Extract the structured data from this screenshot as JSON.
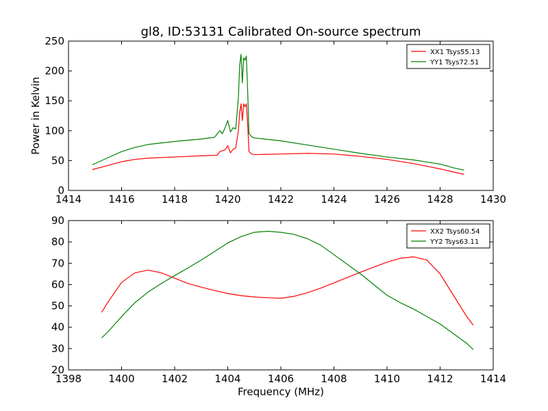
{
  "chart_data": [
    {
      "type": "line",
      "title": "gl8, ID:53131 Calibrated On-source spectrum",
      "xlabel": "",
      "ylabel": "Power in Kelvin",
      "xlim": [
        1414,
        1430
      ],
      "ylim": [
        0,
        250
      ],
      "xticks": [
        "1414",
        "1416",
        "1418",
        "1420",
        "1422",
        "1424",
        "1426",
        "1428",
        "1430"
      ],
      "yticks": [
        "0",
        "50",
        "100",
        "150",
        "200",
        "250"
      ],
      "grid": false,
      "legend": "top-right",
      "series": [
        {
          "name": "XX1 Tsys55.13",
          "color": "#ff0000",
          "x": [
            1414.9,
            1415.5,
            1416.0,
            1416.5,
            1417.0,
            1418.0,
            1419.0,
            1419.6,
            1419.7,
            1419.9,
            1420.0,
            1420.1,
            1420.2,
            1420.3,
            1420.4,
            1420.45,
            1420.5,
            1420.55,
            1420.6,
            1420.65,
            1420.7,
            1420.75,
            1420.8,
            1420.9,
            1421.0,
            1422.0,
            1423.0,
            1424.0,
            1425.0,
            1426.0,
            1427.0,
            1428.0,
            1428.5,
            1428.9
          ],
          "y": [
            35,
            42,
            48,
            52,
            54,
            56,
            58,
            59,
            65,
            68,
            75,
            63,
            69,
            71,
            100,
            130,
            145,
            117,
            145,
            140,
            145,
            110,
            65,
            61,
            60,
            61,
            62,
            61,
            57,
            52,
            45,
            36,
            31,
            27
          ]
        },
        {
          "name": "YY1 Tsys72.51",
          "color": "#008000",
          "x": [
            1414.9,
            1415.5,
            1416.0,
            1416.5,
            1417.0,
            1418.0,
            1419.0,
            1419.5,
            1419.7,
            1419.8,
            1419.9,
            1420.0,
            1420.1,
            1420.2,
            1420.3,
            1420.4,
            1420.45,
            1420.5,
            1420.55,
            1420.6,
            1420.65,
            1420.7,
            1420.75,
            1420.8,
            1420.9,
            1421.0,
            1422.0,
            1423.0,
            1424.0,
            1425.0,
            1426.0,
            1427.0,
            1428.0,
            1428.5,
            1428.9
          ],
          "y": [
            43,
            55,
            65,
            72,
            77,
            82,
            86,
            89,
            100,
            95,
            105,
            117,
            98,
            105,
            103,
            155,
            210,
            228,
            180,
            222,
            218,
            225,
            165,
            95,
            90,
            88,
            83,
            76,
            69,
            62,
            56,
            51,
            44,
            38,
            34
          ]
        }
      ]
    },
    {
      "type": "line",
      "title": "",
      "xlabel": "Frequency (MHz)",
      "ylabel": "",
      "xlim": [
        1398,
        1414
      ],
      "ylim": [
        20,
        90
      ],
      "xticks": [
        "1398",
        "1400",
        "1402",
        "1404",
        "1406",
        "1408",
        "1410",
        "1412",
        "1414"
      ],
      "yticks": [
        "20",
        "30",
        "40",
        "50",
        "60",
        "70",
        "80",
        "90"
      ],
      "grid": false,
      "legend": "top-right",
      "series": [
        {
          "name": "XX2 Tsys60.54",
          "color": "#ff0000",
          "x": [
            1399.25,
            1399.5,
            1400.0,
            1400.5,
            1401.0,
            1401.5,
            1402.0,
            1402.5,
            1403.0,
            1403.5,
            1404.0,
            1404.5,
            1405.0,
            1405.5,
            1406.0,
            1406.5,
            1407.0,
            1407.5,
            1408.0,
            1408.5,
            1409.0,
            1409.5,
            1410.0,
            1410.5,
            1411.0,
            1411.5,
            1412.0,
            1412.5,
            1413.0,
            1413.25
          ],
          "y": [
            47,
            52,
            61,
            65.5,
            66.8,
            65.5,
            63,
            60.5,
            58.8,
            57.2,
            55.8,
            54.8,
            54.2,
            53.8,
            53.6,
            54.5,
            56.2,
            58.3,
            60.8,
            63.3,
            65.8,
            68.2,
            70.5,
            72.3,
            73,
            71.5,
            65,
            55,
            45,
            41
          ]
        },
        {
          "name": "YY2 Tsys63.11",
          "color": "#008000",
          "x": [
            1399.25,
            1399.5,
            1400.0,
            1400.5,
            1401.0,
            1401.5,
            1402.0,
            1402.5,
            1403.0,
            1403.5,
            1404.0,
            1404.5,
            1405.0,
            1405.5,
            1406.0,
            1406.5,
            1407.0,
            1407.5,
            1408.0,
            1408.5,
            1409.0,
            1409.5,
            1410.0,
            1410.5,
            1411.0,
            1411.5,
            1412.0,
            1412.5,
            1413.0,
            1413.25
          ],
          "y": [
            35,
            38,
            45,
            51.5,
            56.5,
            60.5,
            64.2,
            67.8,
            71.5,
            75.5,
            79.5,
            82.5,
            84.5,
            85,
            84.5,
            83.5,
            81.5,
            78.5,
            74,
            69.5,
            65,
            60,
            55,
            51.5,
            48.5,
            45,
            41.5,
            37,
            32.5,
            29.5
          ]
        }
      ]
    }
  ]
}
